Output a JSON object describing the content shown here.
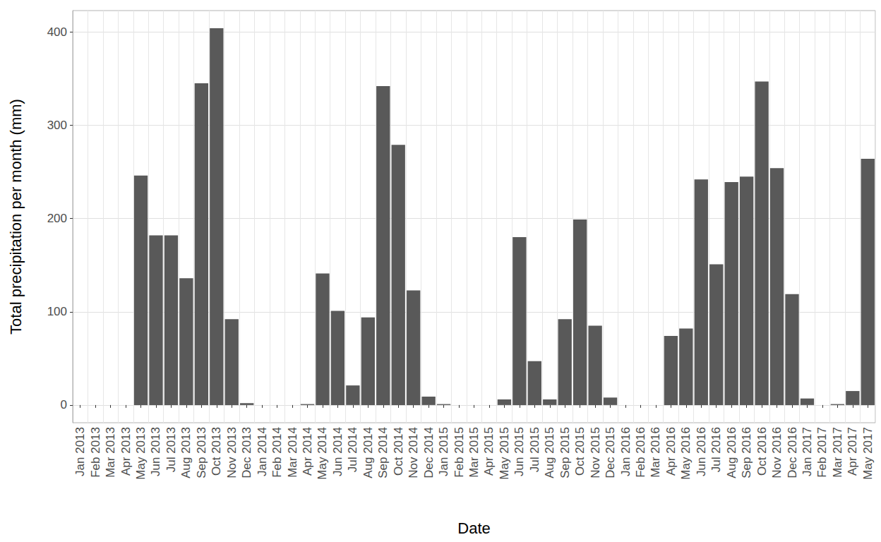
{
  "chart_data": {
    "type": "bar",
    "x_label": "Date",
    "y_label": "Total precipitation per month (mm)",
    "categories": [
      "Jan 2013",
      "Feb 2013",
      "Mar 2013",
      "Apr 2013",
      "May 2013",
      "Jun 2013",
      "Jul 2013",
      "Aug 2013",
      "Sep 2013",
      "Oct 2013",
      "Nov 2013",
      "Dec 2013",
      "Jan 2014",
      "Feb 2014",
      "Mar 2014",
      "Apr 2014",
      "May 2014",
      "Jun 2014",
      "Jul 2014",
      "Aug 2014",
      "Sep 2014",
      "Oct 2014",
      "Nov 2014",
      "Dec 2014",
      "Jan 2015",
      "Feb 2015",
      "Mar 2015",
      "Apr 2015",
      "May 2015",
      "Jun 2015",
      "Jul 2015",
      "Aug 2015",
      "Sep 2015",
      "Oct 2015",
      "Nov 2015",
      "Dec 2015",
      "Jan 2016",
      "Feb 2016",
      "Mar 2016",
      "Apr 2016",
      "May 2016",
      "Jun 2016",
      "Jul 2016",
      "Aug 2016",
      "Sep 2016",
      "Oct 2016",
      "Nov 2016",
      "Dec 2016",
      "Jan 2017",
      "Feb 2017",
      "Mar 2017",
      "Apr 2017",
      "May 2017"
    ],
    "values": [
      null,
      null,
      null,
      null,
      246,
      182,
      182,
      136,
      345,
      404,
      92,
      2,
      0,
      0,
      0,
      1,
      141,
      101,
      21,
      94,
      342,
      279,
      123,
      9,
      1,
      0,
      0,
      0,
      6,
      180,
      47,
      6,
      92,
      199,
      85,
      8,
      0,
      0,
      0,
      74,
      82,
      242,
      151,
      239,
      245,
      347,
      254,
      119,
      7,
      0,
      1,
      15,
      264
    ],
    "color": "#595959",
    "ylim": [
      -19,
      423
    ],
    "yticks": [
      0,
      100,
      200,
      300,
      400
    ],
    "grid": true
  }
}
